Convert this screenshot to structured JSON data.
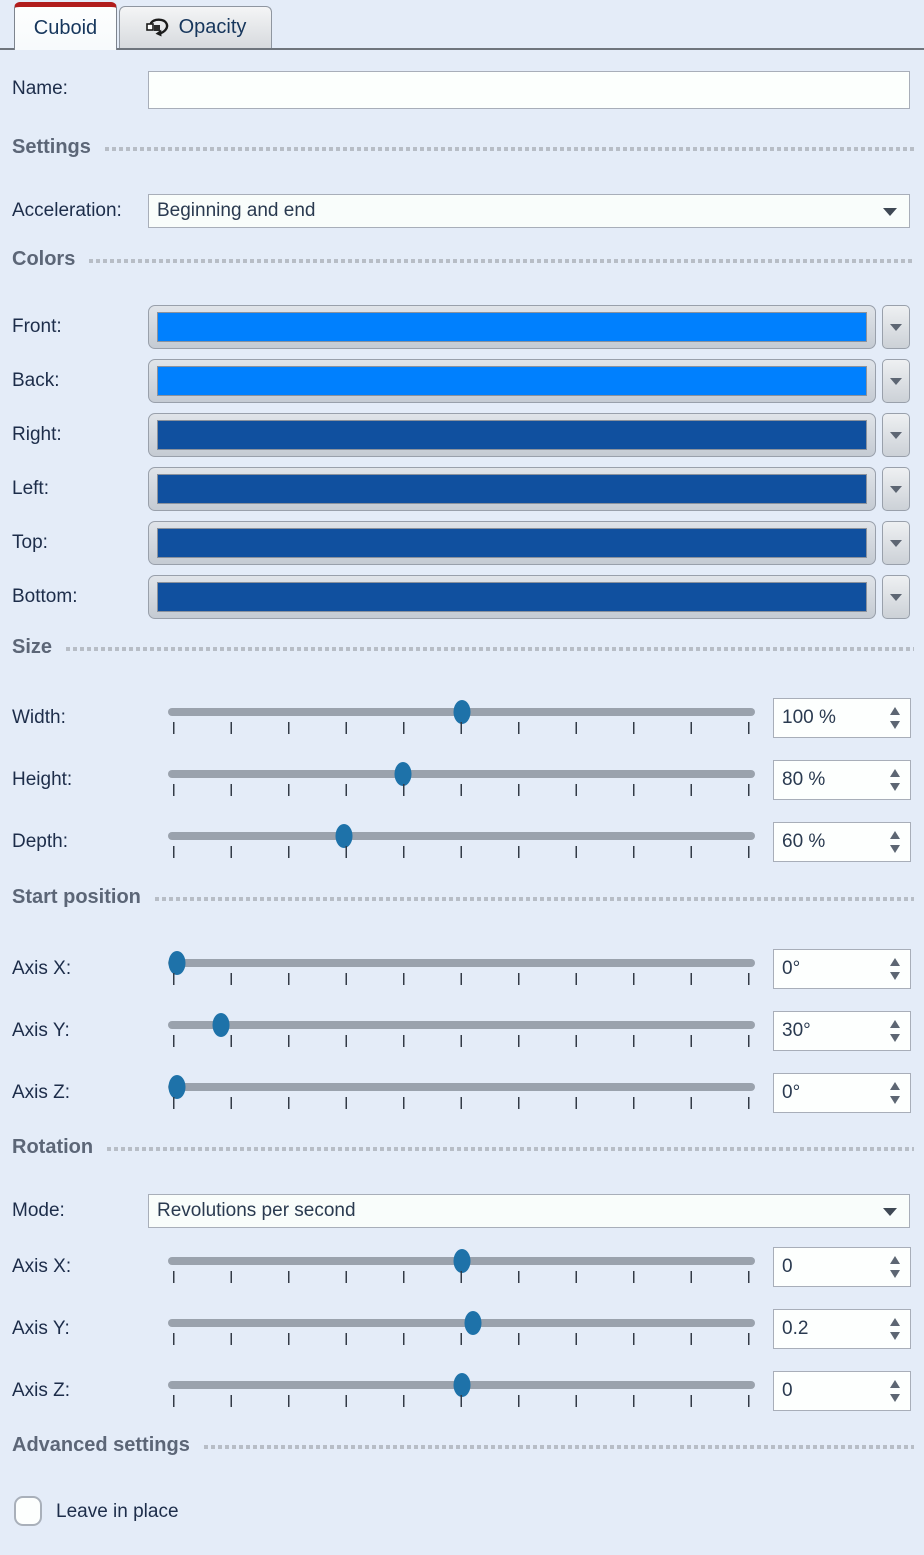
{
  "tabs": {
    "cuboid": "Cuboid",
    "opacity": "Opacity"
  },
  "name": {
    "label": "Name:",
    "value": ""
  },
  "settings": {
    "header": "Settings",
    "acceleration_label": "Acceleration:",
    "acceleration_value": "Beginning and end"
  },
  "colors": {
    "header": "Colors",
    "bright_blue": "#0080fe",
    "dark_blue": "#10509f",
    "rows": [
      {
        "label": "Front:",
        "color": "#0080fe"
      },
      {
        "label": "Back:",
        "color": "#0080fe"
      },
      {
        "label": "Right:",
        "color": "#10509f"
      },
      {
        "label": "Left:",
        "color": "#10509f"
      },
      {
        "label": "Top:",
        "color": "#10509f"
      },
      {
        "label": "Bottom:",
        "color": "#10509f"
      }
    ]
  },
  "size": {
    "header": "Size",
    "rows": [
      {
        "label": "Width:",
        "value": "100 %",
        "percent": 50
      },
      {
        "label": "Height:",
        "value": "80 %",
        "percent": 40
      },
      {
        "label": "Depth:",
        "value": "60 %",
        "percent": 30
      }
    ]
  },
  "start_position": {
    "header": "Start position",
    "rows": [
      {
        "label": "Axis X:",
        "value": "0°",
        "percent": 1.5
      },
      {
        "label": "Axis Y:",
        "value": "30°",
        "percent": 9
      },
      {
        "label": "Axis Z:",
        "value": "0°",
        "percent": 1.5
      }
    ]
  },
  "rotation": {
    "header": "Rotation",
    "mode_label": "Mode:",
    "mode_value": "Revolutions per second",
    "rows": [
      {
        "label": "Axis X:",
        "value": "0",
        "percent": 50
      },
      {
        "label": "Axis Y:",
        "value": "0.2",
        "percent": 52
      },
      {
        "label": "Axis Z:",
        "value": "0",
        "percent": 50
      }
    ]
  },
  "advanced": {
    "header": "Advanced settings",
    "checkbox_label": "Leave in place",
    "checked": false
  }
}
